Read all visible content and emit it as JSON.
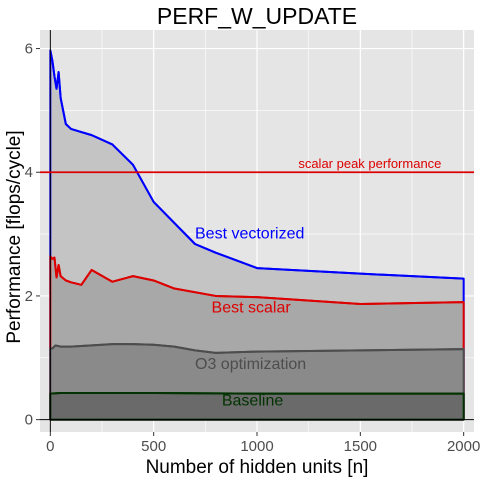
{
  "chart_data": {
    "type": "area",
    "title": "PERF_W_UPDATE",
    "xlabel": "Number of hidden units [n]",
    "ylabel": "Performance [flops/cycle]",
    "xlim": [
      -50,
      2050
    ],
    "ylim": [
      -0.2,
      6.3
    ],
    "xticks": [
      0,
      500,
      1000,
      1500,
      2000
    ],
    "yticks": [
      0,
      2,
      4,
      6
    ],
    "grid": true,
    "colors": {
      "panel": "#e5e5e5",
      "grid": "#ffffff",
      "best_vectorized": "#0000ff",
      "best_scalar": "#dd0000",
      "o3": "#4d4d4d",
      "baseline": "#003300",
      "peak": "#dd0000"
    },
    "series": [
      {
        "name": "Best vectorized",
        "color": "#0000ff",
        "fill": "#c4c4c4",
        "x": [
          0,
          10,
          20,
          30,
          40,
          50,
          75,
          100,
          150,
          200,
          300,
          400,
          500,
          700,
          800,
          1000,
          1500,
          2000
        ],
        "y": [
          5.97,
          5.8,
          5.55,
          5.35,
          5.62,
          5.2,
          4.78,
          4.7,
          4.65,
          4.6,
          4.45,
          4.12,
          3.52,
          2.84,
          2.7,
          2.45,
          2.36,
          2.28
        ]
      },
      {
        "name": "Best scalar",
        "color": "#dd0000",
        "fill": "#a8a8a8",
        "x": [
          0,
          10,
          20,
          30,
          40,
          50,
          75,
          100,
          150,
          200,
          300,
          400,
          500,
          600,
          800,
          1000,
          1500,
          2000
        ],
        "y": [
          2.64,
          2.6,
          2.62,
          2.3,
          2.5,
          2.32,
          2.25,
          2.22,
          2.18,
          2.42,
          2.23,
          2.32,
          2.25,
          2.12,
          2.0,
          1.98,
          1.87,
          1.9
        ]
      },
      {
        "name": "O3 optimization",
        "color": "#4d4d4d",
        "fill": "#8a8a8a",
        "x": [
          0,
          10,
          25,
          50,
          100,
          200,
          300,
          400,
          500,
          600,
          700,
          800,
          1000,
          1500,
          2000
        ],
        "y": [
          1.15,
          1.15,
          1.2,
          1.18,
          1.18,
          1.2,
          1.22,
          1.22,
          1.21,
          1.18,
          1.12,
          1.08,
          1.1,
          1.12,
          1.14
        ]
      },
      {
        "name": "Baseline",
        "color": "#003300",
        "fill": "#6a6a6a",
        "x": [
          0,
          50,
          100,
          500,
          1000,
          1500,
          2000
        ],
        "y": [
          0.42,
          0.43,
          0.43,
          0.43,
          0.42,
          0.42,
          0.42
        ]
      }
    ],
    "hlines": [
      {
        "name": "scalar peak performance",
        "y": 4.0,
        "color": "#dd0000"
      }
    ],
    "annotations": [
      {
        "text": "scalar peak performance",
        "x": 1200,
        "y": 4.07,
        "color": "#dd0000",
        "size": 13
      },
      {
        "text": "Best vectorized",
        "x": 700,
        "y": 2.93,
        "color": "#0000ff",
        "size": 16
      },
      {
        "text": "Best scalar",
        "x": 780,
        "y": 1.73,
        "color": "#dd0000",
        "size": 16
      },
      {
        "text": "O3 optimization",
        "x": 700,
        "y": 0.82,
        "color": "#4d4d4d",
        "size": 16
      },
      {
        "text": "Baseline",
        "x": 830,
        "y": 0.23,
        "color": "#003300",
        "size": 16
      }
    ]
  }
}
